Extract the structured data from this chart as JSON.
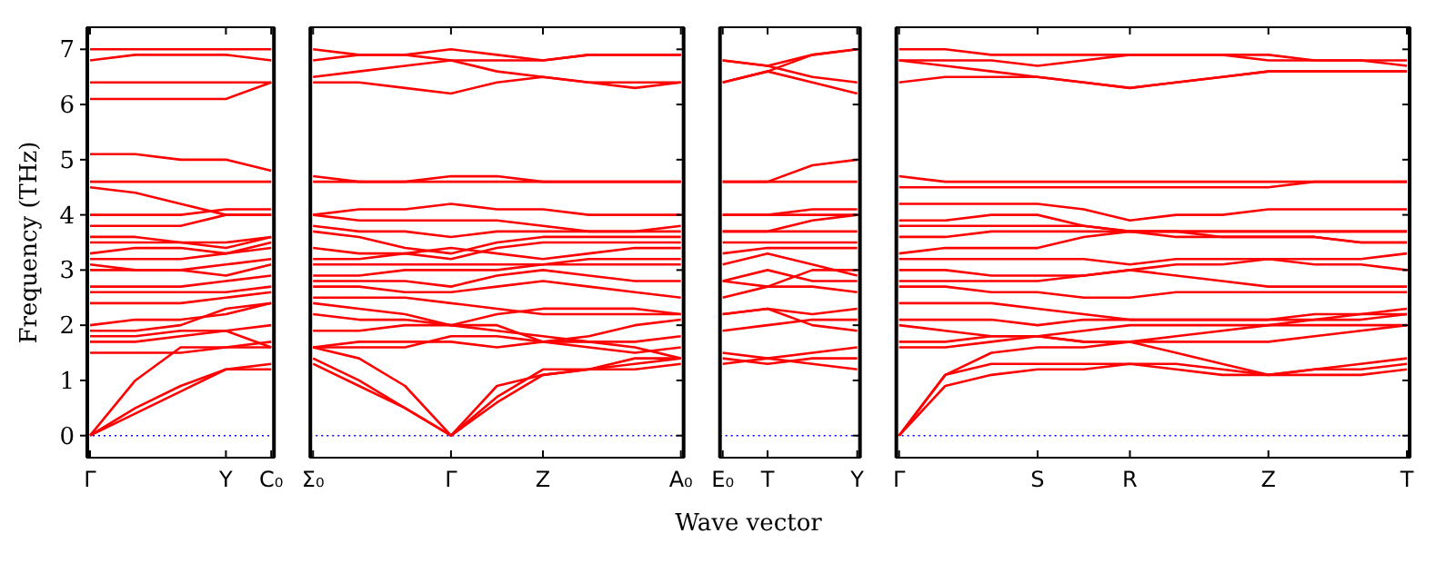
{
  "chart_data": [
    {
      "type": "line",
      "ylabel": "Frequency (THz)",
      "categories": [
        "Γ",
        null,
        null,
        "Y",
        "C₀"
      ],
      "ylim": [
        -0.4,
        7.4
      ],
      "yticks": [
        0,
        1,
        2,
        3,
        4,
        5,
        6,
        7
      ],
      "ref_lines": [
        {
          "axis": "y",
          "value": 0,
          "color": "#0000ff",
          "line_style": "dotted"
        }
      ],
      "series": [
        {
          "color": "#ff0000",
          "values": [
            7.0,
            7.0,
            7.0,
            7.0,
            7.0
          ]
        },
        {
          "color": "#ff0000",
          "values": [
            6.8,
            6.9,
            6.9,
            6.9,
            6.8
          ]
        },
        {
          "color": "#ff0000",
          "values": [
            6.4,
            6.4,
            6.4,
            6.4,
            6.4
          ]
        },
        {
          "color": "#ff0000",
          "values": [
            6.1,
            6.1,
            6.1,
            6.1,
            6.4
          ]
        },
        {
          "color": "#ff0000",
          "values": [
            5.1,
            5.1,
            5.0,
            5.0,
            4.8
          ]
        },
        {
          "color": "#ff0000",
          "values": [
            4.6,
            4.6,
            4.6,
            4.6,
            4.6
          ]
        },
        {
          "color": "#ff0000",
          "values": [
            4.5,
            4.4,
            4.2,
            4.0,
            4.0
          ]
        },
        {
          "color": "#ff0000",
          "values": [
            4.0,
            4.0,
            4.0,
            4.1,
            4.1
          ]
        },
        {
          "color": "#ff0000",
          "values": [
            3.8,
            3.8,
            3.8,
            4.0,
            4.0
          ]
        },
        {
          "color": "#ff0000",
          "values": [
            3.6,
            3.6,
            3.5,
            3.5,
            3.6
          ]
        },
        {
          "color": "#ff0000",
          "values": [
            3.5,
            3.5,
            3.5,
            3.4,
            3.6
          ]
        },
        {
          "color": "#ff0000",
          "values": [
            3.3,
            3.4,
            3.4,
            3.3,
            3.5
          ]
        },
        {
          "color": "#ff0000",
          "values": [
            3.2,
            3.2,
            3.2,
            3.3,
            3.4
          ]
        },
        {
          "color": "#ff0000",
          "values": [
            3.1,
            3.0,
            3.0,
            2.9,
            3.1
          ]
        },
        {
          "color": "#ff0000",
          "values": [
            3.0,
            3.0,
            3.0,
            3.1,
            3.2
          ]
        },
        {
          "color": "#ff0000",
          "values": [
            2.7,
            2.7,
            2.7,
            2.8,
            2.9
          ]
        },
        {
          "color": "#ff0000",
          "values": [
            2.6,
            2.6,
            2.6,
            2.6,
            2.7
          ]
        },
        {
          "color": "#ff0000",
          "values": [
            2.4,
            2.4,
            2.4,
            2.5,
            2.6
          ]
        },
        {
          "color": "#ff0000",
          "values": [
            2.0,
            2.1,
            2.1,
            2.2,
            2.4
          ]
        },
        {
          "color": "#ff0000",
          "values": [
            1.9,
            1.9,
            2.0,
            2.3,
            2.4
          ]
        },
        {
          "color": "#ff0000",
          "values": [
            1.8,
            1.8,
            1.9,
            1.9,
            2.0
          ]
        },
        {
          "color": "#ff0000",
          "values": [
            1.7,
            1.7,
            1.8,
            1.9,
            1.6
          ]
        },
        {
          "color": "#ff0000",
          "values": [
            1.5,
            1.5,
            1.5,
            1.6,
            1.6
          ]
        },
        {
          "color": "#ff0000",
          "values": [
            0,
            1.0,
            1.6,
            1.6,
            1.7
          ]
        },
        {
          "color": "#ff0000",
          "values": [
            0,
            0.4,
            0.8,
            1.2,
            1.2
          ]
        },
        {
          "color": "#ff0000",
          "values": [
            0,
            0.5,
            0.9,
            1.2,
            1.3
          ]
        }
      ]
    },
    {
      "type": "line",
      "xlabel": "Wave vector",
      "categories": [
        "Σ₀",
        null,
        null,
        "Γ",
        null,
        "Z",
        null,
        null,
        "A₀"
      ],
      "ylim": [
        -0.4,
        7.4
      ],
      "yticks": [
        0,
        1,
        2,
        3,
        4,
        5,
        6,
        7
      ],
      "tick_labels": "x",
      "ref_lines": [
        {
          "axis": "y",
          "value": 0,
          "color": "#0000ff",
          "line_style": "dotted"
        }
      ],
      "series": [
        {
          "color": "#ff0000",
          "values": [
            7.0,
            6.9,
            6.9,
            6.8,
            6.8,
            6.8,
            6.9,
            6.9,
            6.9
          ]
        },
        {
          "color": "#ff0000",
          "values": [
            6.8,
            6.9,
            6.9,
            7.0,
            6.9,
            6.8,
            6.9,
            6.9,
            6.9
          ]
        },
        {
          "color": "#ff0000",
          "values": [
            6.5,
            6.6,
            6.7,
            6.8,
            6.6,
            6.5,
            6.4,
            6.3,
            6.4
          ]
        },
        {
          "color": "#ff0000",
          "values": [
            6.4,
            6.4,
            6.3,
            6.2,
            6.4,
            6.5,
            6.4,
            6.4,
            6.4
          ]
        },
        {
          "color": "#ff0000",
          "values": [
            4.7,
            4.6,
            4.6,
            4.7,
            4.7,
            4.6,
            4.6,
            4.6,
            4.6
          ]
        },
        {
          "color": "#ff0000",
          "values": [
            4.6,
            4.6,
            4.6,
            4.6,
            4.6,
            4.6,
            4.6,
            4.6,
            4.6
          ]
        },
        {
          "color": "#ff0000",
          "values": [
            4.0,
            4.1,
            4.1,
            4.2,
            4.1,
            4.1,
            4.0,
            4.0,
            4.0
          ]
        },
        {
          "color": "#ff0000",
          "values": [
            4.0,
            3.9,
            3.9,
            3.9,
            3.9,
            3.8,
            3.7,
            3.7,
            3.7
          ]
        },
        {
          "color": "#ff0000",
          "values": [
            3.8,
            3.7,
            3.7,
            3.6,
            3.7,
            3.7,
            3.7,
            3.7,
            3.8
          ]
        },
        {
          "color": "#ff0000",
          "values": [
            3.7,
            3.6,
            3.4,
            3.3,
            3.5,
            3.6,
            3.6,
            3.6,
            3.6
          ]
        },
        {
          "color": "#ff0000",
          "values": [
            3.4,
            3.3,
            3.3,
            3.2,
            3.4,
            3.5,
            3.5,
            3.5,
            3.5
          ]
        },
        {
          "color": "#ff0000",
          "values": [
            3.2,
            3.2,
            3.3,
            3.4,
            3.3,
            3.2,
            3.3,
            3.4,
            3.4
          ]
        },
        {
          "color": "#ff0000",
          "values": [
            3.1,
            3.1,
            3.1,
            3.1,
            3.1,
            3.1,
            3.1,
            3.1,
            3.1
          ]
        },
        {
          "color": "#ff0000",
          "values": [
            2.9,
            2.9,
            3.0,
            3.0,
            3.0,
            3.1,
            3.2,
            3.2,
            3.2
          ]
        },
        {
          "color": "#ff0000",
          "values": [
            2.8,
            2.8,
            2.8,
            2.7,
            2.9,
            3.0,
            2.9,
            2.8,
            2.8
          ]
        },
        {
          "color": "#ff0000",
          "values": [
            2.7,
            2.7,
            2.6,
            2.6,
            2.7,
            2.8,
            2.7,
            2.6,
            2.5
          ]
        },
        {
          "color": "#ff0000",
          "values": [
            2.5,
            2.5,
            2.5,
            2.4,
            2.3,
            2.2,
            2.2,
            2.2,
            2.2
          ]
        },
        {
          "color": "#ff0000",
          "values": [
            2.4,
            2.3,
            2.2,
            2.0,
            2.2,
            2.3,
            2.3,
            2.3,
            2.2
          ]
        },
        {
          "color": "#ff0000",
          "values": [
            2.2,
            2.1,
            2.1,
            2.0,
            2.0,
            1.7,
            1.8,
            2.0,
            2.1
          ]
        },
        {
          "color": "#ff0000",
          "values": [
            1.9,
            1.9,
            2.0,
            2.0,
            1.9,
            1.8,
            1.7,
            1.7,
            1.8
          ]
        },
        {
          "color": "#ff0000",
          "values": [
            1.6,
            1.7,
            1.7,
            1.7,
            1.6,
            1.7,
            1.7,
            1.6,
            1.4
          ]
        },
        {
          "color": "#ff0000",
          "values": [
            1.6,
            1.6,
            1.6,
            1.8,
            1.8,
            1.7,
            1.6,
            1.5,
            1.6
          ]
        },
        {
          "color": "#ff0000",
          "values": [
            1.4,
            1.0,
            0.5,
            0,
            0.7,
            1.2,
            1.2,
            1.3,
            1.4
          ]
        },
        {
          "color": "#ff0000",
          "values": [
            1.3,
            0.9,
            0.5,
            0,
            0.6,
            1.1,
            1.2,
            1.2,
            1.3
          ]
        },
        {
          "color": "#ff0000",
          "values": [
            1.6,
            1.4,
            0.9,
            0,
            0.9,
            1.1,
            1.2,
            1.4,
            1.4
          ]
        }
      ]
    },
    {
      "type": "line",
      "categories": [
        "E₀",
        "T",
        null,
        "Y"
      ],
      "ylim": [
        -0.4,
        7.4
      ],
      "yticks": [
        0,
        1,
        2,
        3,
        4,
        5,
        6,
        7
      ],
      "tick_labels": "x",
      "ref_lines": [
        {
          "axis": "y",
          "value": 0,
          "color": "#0000ff",
          "line_style": "dotted"
        }
      ],
      "series": [
        {
          "color": "#ff0000",
          "values": [
            6.8,
            6.7,
            6.9,
            7.0
          ]
        },
        {
          "color": "#ff0000",
          "values": [
            6.8,
            6.7,
            6.5,
            6.4
          ]
        },
        {
          "color": "#ff0000",
          "values": [
            6.4,
            6.6,
            6.4,
            6.2
          ]
        },
        {
          "color": "#ff0000",
          "values": [
            6.4,
            6.6,
            6.9,
            7.0
          ]
        },
        {
          "color": "#ff0000",
          "values": [
            4.6,
            4.6,
            4.9,
            5.0
          ]
        },
        {
          "color": "#ff0000",
          "values": [
            4.6,
            4.6,
            4.6,
            4.6
          ]
        },
        {
          "color": "#ff0000",
          "values": [
            4.0,
            4.0,
            4.1,
            4.1
          ]
        },
        {
          "color": "#ff0000",
          "values": [
            4.0,
            4.0,
            4.0,
            4.0
          ]
        },
        {
          "color": "#ff0000",
          "values": [
            3.7,
            3.7,
            3.9,
            4.0
          ]
        },
        {
          "color": "#ff0000",
          "values": [
            3.7,
            3.7,
            3.7,
            3.7
          ]
        },
        {
          "color": "#ff0000",
          "values": [
            3.5,
            3.5,
            3.5,
            3.5
          ]
        },
        {
          "color": "#ff0000",
          "values": [
            3.3,
            3.4,
            3.4,
            3.4
          ]
        },
        {
          "color": "#ff0000",
          "values": [
            3.1,
            3.3,
            3.1,
            2.9
          ]
        },
        {
          "color": "#ff0000",
          "values": [
            2.8,
            3.0,
            2.8,
            2.8
          ]
        },
        {
          "color": "#ff0000",
          "values": [
            2.8,
            2.7,
            3.0,
            3.0
          ]
        },
        {
          "color": "#ff0000",
          "values": [
            2.5,
            2.7,
            2.7,
            2.6
          ]
        },
        {
          "color": "#ff0000",
          "values": [
            2.2,
            2.3,
            2.2,
            2.3
          ]
        },
        {
          "color": "#ff0000",
          "values": [
            2.2,
            2.3,
            2.0,
            1.9
          ]
        },
        {
          "color": "#ff0000",
          "values": [
            1.9,
            2.0,
            2.1,
            2.1
          ]
        },
        {
          "color": "#ff0000",
          "values": [
            1.5,
            1.4,
            1.5,
            1.6
          ]
        },
        {
          "color": "#ff0000",
          "values": [
            1.3,
            1.4,
            1.3,
            1.2
          ]
        },
        {
          "color": "#ff0000",
          "values": [
            1.4,
            1.3,
            1.4,
            1.4
          ]
        }
      ]
    },
    {
      "type": "line",
      "categories": [
        "Γ",
        null,
        null,
        "S",
        null,
        "R",
        null,
        null,
        "Z",
        null,
        null,
        "T"
      ],
      "ylim": [
        -0.4,
        7.4
      ],
      "yticks": [
        0,
        1,
        2,
        3,
        4,
        5,
        6,
        7
      ],
      "tick_labels": "x",
      "ref_lines": [
        {
          "axis": "y",
          "value": 0,
          "color": "#0000ff",
          "line_style": "dotted"
        }
      ],
      "series": [
        {
          "color": "#ff0000",
          "values": [
            7.0,
            7.0,
            6.9,
            6.9,
            6.9,
            6.9,
            6.9,
            6.9,
            6.8,
            6.8,
            6.8,
            6.7
          ]
        },
        {
          "color": "#ff0000",
          "values": [
            6.8,
            6.8,
            6.8,
            6.7,
            6.8,
            6.9,
            6.9,
            6.9,
            6.9,
            6.8,
            6.8,
            6.8
          ]
        },
        {
          "color": "#ff0000",
          "values": [
            6.8,
            6.7,
            6.6,
            6.5,
            6.4,
            6.3,
            6.4,
            6.5,
            6.6,
            6.6,
            6.6,
            6.6
          ]
        },
        {
          "color": "#ff0000",
          "values": [
            6.4,
            6.5,
            6.5,
            6.5,
            6.4,
            6.3,
            6.4,
            6.5,
            6.6,
            6.6,
            6.6,
            6.6
          ]
        },
        {
          "color": "#ff0000",
          "values": [
            4.7,
            4.6,
            4.6,
            4.6,
            4.6,
            4.6,
            4.6,
            4.6,
            4.6,
            4.6,
            4.6,
            4.6
          ]
        },
        {
          "color": "#ff0000",
          "values": [
            4.5,
            4.5,
            4.5,
            4.5,
            4.5,
            4.5,
            4.5,
            4.5,
            4.5,
            4.6,
            4.6,
            4.6
          ]
        },
        {
          "color": "#ff0000",
          "values": [
            4.2,
            4.2,
            4.2,
            4.2,
            4.1,
            3.9,
            4.0,
            4.0,
            4.1,
            4.1,
            4.1,
            4.1
          ]
        },
        {
          "color": "#ff0000",
          "values": [
            3.9,
            3.9,
            4.0,
            4.0,
            3.8,
            3.7,
            3.7,
            3.7,
            3.7,
            3.7,
            3.7,
            3.7
          ]
        },
        {
          "color": "#ff0000",
          "values": [
            3.8,
            3.8,
            3.8,
            3.8,
            3.8,
            3.7,
            3.7,
            3.6,
            3.6,
            3.6,
            3.5,
            3.5
          ]
        },
        {
          "color": "#ff0000",
          "values": [
            3.6,
            3.6,
            3.7,
            3.7,
            3.7,
            3.7,
            3.7,
            3.7,
            3.7,
            3.7,
            3.7,
            3.7
          ]
        },
        {
          "color": "#ff0000",
          "values": [
            3.3,
            3.4,
            3.4,
            3.4,
            3.6,
            3.7,
            3.6,
            3.6,
            3.6,
            3.6,
            3.5,
            3.5
          ]
        },
        {
          "color": "#ff0000",
          "values": [
            3.2,
            3.2,
            3.2,
            3.2,
            3.2,
            3.1,
            3.2,
            3.2,
            3.2,
            3.2,
            3.2,
            3.3
          ]
        },
        {
          "color": "#ff0000",
          "values": [
            3.0,
            3.0,
            2.9,
            2.9,
            2.9,
            3.0,
            3.1,
            3.1,
            3.2,
            3.1,
            3.1,
            3.0
          ]
        },
        {
          "color": "#ff0000",
          "values": [
            2.8,
            2.8,
            2.8,
            2.8,
            2.9,
            3.0,
            2.9,
            2.8,
            2.7,
            2.7,
            2.7,
            2.7
          ]
        },
        {
          "color": "#ff0000",
          "values": [
            2.7,
            2.7,
            2.6,
            2.6,
            2.5,
            2.5,
            2.6,
            2.6,
            2.6,
            2.6,
            2.6,
            2.6
          ]
        },
        {
          "color": "#ff0000",
          "values": [
            2.4,
            2.4,
            2.4,
            2.3,
            2.2,
            2.1,
            2.1,
            2.1,
            2.1,
            2.2,
            2.2,
            2.3
          ]
        },
        {
          "color": "#ff0000",
          "values": [
            2.1,
            2.1,
            2.1,
            2.0,
            2.1,
            2.1,
            2.1,
            2.1,
            2.1,
            2.1,
            2.2,
            2.2
          ]
        },
        {
          "color": "#ff0000",
          "values": [
            2.0,
            1.9,
            1.8,
            1.8,
            1.9,
            2.0,
            2.0,
            2.0,
            2.0,
            2.0,
            2.0,
            2.0
          ]
        },
        {
          "color": "#ff0000",
          "values": [
            1.7,
            1.7,
            1.8,
            1.8,
            1.7,
            1.7,
            1.8,
            1.9,
            2.0,
            2.1,
            2.1,
            2.2
          ]
        },
        {
          "color": "#ff0000",
          "values": [
            1.6,
            1.6,
            1.7,
            1.8,
            1.7,
            1.7,
            1.5,
            1.3,
            1.1,
            1.2,
            1.3,
            1.4
          ]
        },
        {
          "color": "#ff0000",
          "values": [
            0,
            1.1,
            1.3,
            1.3,
            1.3,
            1.3,
            1.3,
            1.2,
            1.1,
            1.2,
            1.2,
            1.3
          ]
        },
        {
          "color": "#ff0000",
          "values": [
            0,
            0.9,
            1.1,
            1.2,
            1.2,
            1.3,
            1.2,
            1.1,
            1.1,
            1.1,
            1.1,
            1.2
          ]
        },
        {
          "color": "#ff0000",
          "values": [
            0,
            1.1,
            1.5,
            1.6,
            1.6,
            1.7,
            1.7,
            1.7,
            1.7,
            1.8,
            1.9,
            2.0
          ]
        }
      ]
    }
  ]
}
